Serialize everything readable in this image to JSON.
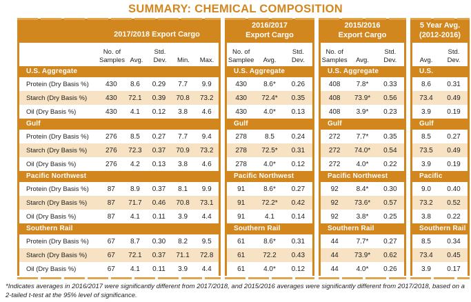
{
  "title": "SUMMARY: CHEMICAL COMPOSITION",
  "footnote": "*Indicates averages in 2016/2017 were significantly different from 2017/2018, and 2015/2016 averages were significantly different from 2017/2018, based on a 2-tailed t-test at the 95% level of significance.",
  "colors": {
    "orange": "#D2861E",
    "orange_light": "#E0A54B",
    "tan_row": "#F7E3C4"
  },
  "row_labels": [
    "Protein (Dry Basis %)",
    "Starch (Dry Basis %)",
    "Oil (Dry Basis %)"
  ],
  "panels": [
    {
      "id": "2017-2018-export-cargo",
      "header_lines": [
        "2017/2018 Export Cargo"
      ],
      "columns": [
        "No. of\nSamples",
        "Avg.",
        "Std.\nDev.",
        "Min.",
        "Max."
      ],
      "show_row_labels": true,
      "sections": [
        {
          "name": "U.S. Aggregate",
          "rows": [
            [
              "430",
              "8.6",
              "0.29",
              "7.7",
              "9.9"
            ],
            [
              "430",
              "72.1",
              "0.39",
              "70.8",
              "73.2"
            ],
            [
              "430",
              "4.1",
              "0.12",
              "3.8",
              "4.6"
            ]
          ]
        },
        {
          "name": "Gulf",
          "rows": [
            [
              "276",
              "8.5",
              "0.27",
              "7.7",
              "9.4"
            ],
            [
              "276",
              "72.3",
              "0.37",
              "70.9",
              "73.2"
            ],
            [
              "276",
              "4.2",
              "0.13",
              "3.8",
              "4.6"
            ]
          ]
        },
        {
          "name": "Pacific Northwest",
          "rows": [
            [
              "87",
              "8.9",
              "0.37",
              "8.1",
              "9.9"
            ],
            [
              "87",
              "71.7",
              "0.46",
              "70.8",
              "73.1"
            ],
            [
              "87",
              "4.1",
              "0.11",
              "3.9",
              "4.4"
            ]
          ]
        },
        {
          "name": "Southern Rail",
          "rows": [
            [
              "67",
              "8.7",
              "0.30",
              "8.2",
              "9.5"
            ],
            [
              "67",
              "72.1",
              "0.37",
              "71.1",
              "72.8"
            ],
            [
              "67",
              "4.1",
              "0.11",
              "3.9",
              "4.4"
            ]
          ]
        }
      ]
    },
    {
      "id": "2016-2017-export-cargo",
      "header_lines": [
        "2016/2017",
        "Export Cargo"
      ],
      "columns": [
        "No. of\nSamplee",
        "Avg.",
        "Std.\nDev."
      ],
      "show_row_labels": false,
      "sections": [
        {
          "name": "U.S. Aggregate",
          "rows": [
            [
              "430",
              "8.6*",
              "0.26"
            ],
            [
              "430",
              "72.4*",
              "0.35"
            ],
            [
              "430",
              "4.0*",
              "0.13"
            ]
          ]
        },
        {
          "name": "Gulf",
          "rows": [
            [
              "278",
              "8.5",
              "0.24"
            ],
            [
              "278",
              "72.5*",
              "0.31"
            ],
            [
              "278",
              "4.0*",
              "0.12"
            ]
          ]
        },
        {
          "name": "Pacific Northwest",
          "rows": [
            [
              "91",
              "8.6*",
              "0.27"
            ],
            [
              "91",
              "72.2*",
              "0.42"
            ],
            [
              "91",
              "4.1",
              "0.14"
            ]
          ]
        },
        {
          "name": "Southern Rail",
          "rows": [
            [
              "61",
              "8.6*",
              "0.31"
            ],
            [
              "61",
              "72.2",
              "0.43"
            ],
            [
              "61",
              "4.0*",
              "0.12"
            ]
          ]
        }
      ]
    },
    {
      "id": "2015-2016-export-cargo",
      "header_lines": [
        "2015/2016",
        "Export Cargo"
      ],
      "columns": [
        "No. of\nSamples",
        "Avg.",
        "Std.\nDev."
      ],
      "show_row_labels": false,
      "sections": [
        {
          "name": "U.S. Aggregate",
          "rows": [
            [
              "408",
              "7.8*",
              "0.33"
            ],
            [
              "408",
              "73.9*",
              "0.56"
            ],
            [
              "408",
              "3.9*",
              "0.23"
            ]
          ]
        },
        {
          "name": "Gulf",
          "rows": [
            [
              "272",
              "7.7*",
              "0.35"
            ],
            [
              "272",
              "74.0*",
              "0.54"
            ],
            [
              "272",
              "4.0*",
              "0.22"
            ]
          ]
        },
        {
          "name": "Pacific Northwest",
          "rows": [
            [
              "92",
              "8.4*",
              "0.30"
            ],
            [
              "92",
              "73.6*",
              "0.57"
            ],
            [
              "92",
              "3.8*",
              "0.25"
            ]
          ]
        },
        {
          "name": "Southern Rail",
          "rows": [
            [
              "44",
              "7.7*",
              "0.27"
            ],
            [
              "44",
              "73.9*",
              "0.62"
            ],
            [
              "44",
              "4.0*",
              "0.26"
            ]
          ]
        }
      ]
    },
    {
      "id": "5-year-avg-2012-2016",
      "header_lines": [
        "5 Year Avg.",
        "(2012-2016)"
      ],
      "columns": [
        "Avg.",
        "Std.\nDev."
      ],
      "show_row_labels": false,
      "sections": [
        {
          "name": "U.S. Aggregate",
          "rows": [
            [
              "8.6",
              "0.31"
            ],
            [
              "73.4",
              "0.49"
            ],
            [
              "3.9",
              "0.19"
            ]
          ]
        },
        {
          "name": "Gulf",
          "rows": [
            [
              "8.5",
              "0.27"
            ],
            [
              "73.5",
              "0.49"
            ],
            [
              "3.9",
              "0.19"
            ]
          ]
        },
        {
          "name": "Pacific Northwest",
          "rows": [
            [
              "9.0",
              "0.40"
            ],
            [
              "73.2",
              "0.52"
            ],
            [
              "3.8",
              "0.22"
            ]
          ]
        },
        {
          "name": "Southern Rail",
          "rows": [
            [
              "8.5",
              "0.34"
            ],
            [
              "73.4",
              "0.45"
            ],
            [
              "3.9",
              "0.17"
            ]
          ]
        }
      ]
    }
  ]
}
